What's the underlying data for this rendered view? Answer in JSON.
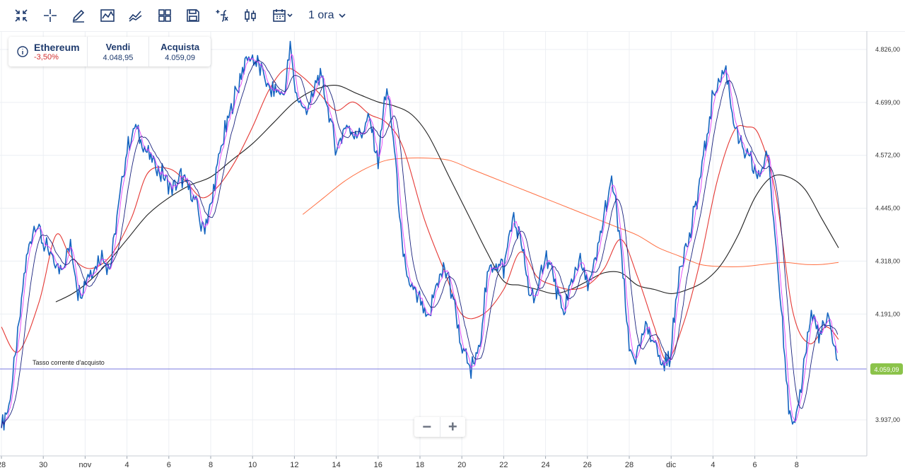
{
  "toolbar": {
    "icons": [
      "collapse-icon",
      "crosshair-icon",
      "pencil-icon",
      "line-style-icon",
      "indicator-icon",
      "layout-icon",
      "save-icon",
      "function-icon",
      "candlestick-icon",
      "calendar-icon"
    ],
    "timeframe_label": "1 ora"
  },
  "instrument": {
    "name": "Ethereum",
    "change": "-3,50%",
    "sell_label": "Vendi",
    "sell_value": "4.048,95",
    "buy_label": "Acquista",
    "buy_value": "4.059,09"
  },
  "current_rate": {
    "label": "Tasso corrente d'acquisto",
    "value": 4059.09,
    "value_text": "4.059,09",
    "color": "#7b7be0",
    "badge_color": "#8bc34a"
  },
  "zoom": {
    "minus": "−",
    "plus": "+"
  },
  "chart_data": {
    "type": "line",
    "x_tick_labels": [
      "28",
      "30",
      "nov",
      "4",
      "6",
      "8",
      "10",
      "12",
      "14",
      "16",
      "18",
      "20",
      "22",
      "24",
      "26",
      "28",
      "dic",
      "4",
      "6",
      "8"
    ],
    "y_tick_labels": [
      "4.826,00",
      "4.699,00",
      "4.572,00",
      "4.445,00",
      "4.318,00",
      "4.191,00",
      "4.059,09",
      "3.937,00"
    ],
    "y_ticks": [
      4826,
      4699,
      4572,
      4445,
      4318,
      4191,
      3937
    ],
    "ylim": [
      3870,
      4870
    ],
    "x_range": [
      0,
      41
    ],
    "grid": true,
    "colors": {
      "price": "#1565c0",
      "ma_fast": "#e040fb",
      "ma_mid": "#1a237e",
      "ma_red": "#e53935",
      "ma_black": "#212121",
      "ma_orange": "#ff7043"
    },
    "price_anchors": [
      [
        0,
        3930
      ],
      [
        0.3,
        3950
      ],
      [
        0.7,
        4100
      ],
      [
        1.2,
        4330
      ],
      [
        1.6,
        4420
      ],
      [
        2.2,
        4340
      ],
      [
        2.8,
        4300
      ],
      [
        3.3,
        4350
      ],
      [
        3.7,
        4240
      ],
      [
        4.2,
        4290
      ],
      [
        4.8,
        4330
      ],
      [
        5.2,
        4300
      ],
      [
        5.6,
        4450
      ],
      [
        6.0,
        4590
      ],
      [
        6.4,
        4640
      ],
      [
        6.8,
        4590
      ],
      [
        7.3,
        4550
      ],
      [
        7.8,
        4520
      ],
      [
        8.2,
        4490
      ],
      [
        8.6,
        4520
      ],
      [
        9.2,
        4470
      ],
      [
        9.6,
        4390
      ],
      [
        10.0,
        4440
      ],
      [
        10.4,
        4570
      ],
      [
        10.8,
        4650
      ],
      [
        11.2,
        4720
      ],
      [
        11.6,
        4790
      ],
      [
        12.0,
        4810
      ],
      [
        12.4,
        4780
      ],
      [
        12.8,
        4730
      ],
      [
        13.2,
        4720
      ],
      [
        13.5,
        4720
      ],
      [
        13.8,
        4830
      ],
      [
        14.0,
        4740
      ],
      [
        14.4,
        4680
      ],
      [
        14.8,
        4700
      ],
      [
        15.2,
        4770
      ],
      [
        15.6,
        4690
      ],
      [
        16.0,
        4580
      ],
      [
        16.4,
        4640
      ],
      [
        16.8,
        4630
      ],
      [
        17.2,
        4620
      ],
      [
        17.6,
        4660
      ],
      [
        18.0,
        4560
      ],
      [
        18.4,
        4740
      ],
      [
        18.8,
        4580
      ],
      [
        19.2,
        4320
      ],
      [
        19.6,
        4250
      ],
      [
        20.0,
        4220
      ],
      [
        20.4,
        4170
      ],
      [
        20.8,
        4270
      ],
      [
        21.2,
        4300
      ],
      [
        21.6,
        4230
      ],
      [
        22.0,
        4110
      ],
      [
        22.4,
        4050
      ],
      [
        22.8,
        4100
      ],
      [
        23.2,
        4280
      ],
      [
        23.6,
        4320
      ],
      [
        24.0,
        4300
      ],
      [
        24.4,
        4420
      ],
      [
        24.8,
        4370
      ],
      [
        25.2,
        4250
      ],
      [
        25.6,
        4230
      ],
      [
        26.0,
        4340
      ],
      [
        26.4,
        4280
      ],
      [
        26.8,
        4180
      ],
      [
        27.2,
        4260
      ],
      [
        27.6,
        4320
      ],
      [
        28.0,
        4260
      ],
      [
        28.4,
        4310
      ],
      [
        28.8,
        4430
      ],
      [
        29.2,
        4510
      ],
      [
        29.6,
        4350
      ],
      [
        30.0,
        4100
      ],
      [
        30.4,
        4090
      ],
      [
        30.8,
        4160
      ],
      [
        31.2,
        4130
      ],
      [
        31.6,
        4060
      ],
      [
        32.0,
        4100
      ],
      [
        32.4,
        4310
      ],
      [
        32.8,
        4360
      ],
      [
        33.2,
        4460
      ],
      [
        33.6,
        4580
      ],
      [
        34.0,
        4710
      ],
      [
        34.3,
        4750
      ],
      [
        34.6,
        4780
      ],
      [
        35.0,
        4660
      ],
      [
        35.4,
        4580
      ],
      [
        35.8,
        4560
      ],
      [
        36.2,
        4520
      ],
      [
        36.6,
        4580
      ],
      [
        36.9,
        4420
      ],
      [
        37.3,
        4200
      ],
      [
        37.6,
        3960
      ],
      [
        37.9,
        3910
      ],
      [
        38.3,
        4060
      ],
      [
        38.7,
        4190
      ],
      [
        39.1,
        4140
      ],
      [
        39.5,
        4170
      ],
      [
        39.9,
        4100
      ],
      [
        40.0,
        4060
      ]
    ],
    "ma_red": [
      [
        0,
        4160
      ],
      [
        0.8,
        4100
      ],
      [
        1.8,
        4220
      ],
      [
        2.6,
        4380
      ],
      [
        3.3,
        4330
      ],
      [
        4.2,
        4300
      ],
      [
        5.2,
        4330
      ],
      [
        6.2,
        4420
      ],
      [
        7.0,
        4530
      ],
      [
        8.0,
        4540
      ],
      [
        8.8,
        4510
      ],
      [
        9.6,
        4470
      ],
      [
        10.4,
        4500
      ],
      [
        11.2,
        4560
      ],
      [
        12.0,
        4640
      ],
      [
        12.8,
        4730
      ],
      [
        13.6,
        4780
      ],
      [
        14.4,
        4760
      ],
      [
        15.2,
        4720
      ],
      [
        16.0,
        4680
      ],
      [
        16.8,
        4700
      ],
      [
        17.6,
        4670
      ],
      [
        18.4,
        4650
      ],
      [
        19.2,
        4590
      ],
      [
        20.2,
        4420
      ],
      [
        21.2,
        4290
      ],
      [
        22.0,
        4190
      ],
      [
        23.0,
        4190
      ],
      [
        24.0,
        4250
      ],
      [
        24.8,
        4340
      ],
      [
        25.6,
        4280
      ],
      [
        26.4,
        4260
      ],
      [
        27.2,
        4250
      ],
      [
        28.0,
        4260
      ],
      [
        28.8,
        4300
      ],
      [
        29.6,
        4370
      ],
      [
        30.4,
        4280
      ],
      [
        31.2,
        4160
      ],
      [
        31.8,
        4080
      ],
      [
        32.6,
        4170
      ],
      [
        33.4,
        4320
      ],
      [
        34.2,
        4510
      ],
      [
        35.0,
        4630
      ],
      [
        35.6,
        4640
      ],
      [
        36.2,
        4620
      ],
      [
        37.0,
        4480
      ],
      [
        37.8,
        4200
      ],
      [
        38.6,
        4120
      ],
      [
        39.4,
        4160
      ],
      [
        40.0,
        4130
      ]
    ],
    "ma_black": [
      [
        2.6,
        4220
      ],
      [
        3.4,
        4240
      ],
      [
        4.2,
        4270
      ],
      [
        5.0,
        4310
      ],
      [
        6.0,
        4370
      ],
      [
        7.0,
        4430
      ],
      [
        8.0,
        4470
      ],
      [
        9.0,
        4500
      ],
      [
        10.0,
        4520
      ],
      [
        11.0,
        4560
      ],
      [
        12.0,
        4600
      ],
      [
        13.0,
        4650
      ],
      [
        14.0,
        4700
      ],
      [
        15.0,
        4730
      ],
      [
        16.0,
        4740
      ],
      [
        17.0,
        4720
      ],
      [
        18.0,
        4700
      ],
      [
        18.8,
        4690
      ],
      [
        19.6,
        4670
      ],
      [
        20.4,
        4620
      ],
      [
        21.4,
        4520
      ],
      [
        22.4,
        4420
      ],
      [
        23.2,
        4340
      ],
      [
        24.0,
        4270
      ],
      [
        24.8,
        4260
      ],
      [
        25.6,
        4250
      ],
      [
        26.4,
        4240
      ],
      [
        27.2,
        4250
      ],
      [
        28.0,
        4270
      ],
      [
        28.8,
        4290
      ],
      [
        29.6,
        4290
      ],
      [
        30.4,
        4260
      ],
      [
        31.2,
        4250
      ],
      [
        32.0,
        4240
      ],
      [
        32.8,
        4250
      ],
      [
        33.6,
        4270
      ],
      [
        34.4,
        4310
      ],
      [
        35.2,
        4380
      ],
      [
        36.0,
        4470
      ],
      [
        36.8,
        4520
      ],
      [
        37.6,
        4520
      ],
      [
        38.4,
        4490
      ],
      [
        39.2,
        4420
      ],
      [
        40.0,
        4350
      ]
    ],
    "ma_orange": [
      [
        14.4,
        4430
      ],
      [
        15.4,
        4470
      ],
      [
        16.4,
        4510
      ],
      [
        17.4,
        4540
      ],
      [
        18.4,
        4560
      ],
      [
        19.4,
        4565
      ],
      [
        20.4,
        4565
      ],
      [
        21.4,
        4560
      ],
      [
        22.4,
        4540
      ],
      [
        23.4,
        4520
      ],
      [
        24.4,
        4500
      ],
      [
        25.4,
        4480
      ],
      [
        26.4,
        4460
      ],
      [
        27.4,
        4440
      ],
      [
        28.4,
        4420
      ],
      [
        29.4,
        4400
      ],
      [
        30.4,
        4380
      ],
      [
        31.4,
        4350
      ],
      [
        32.4,
        4330
      ],
      [
        33.4,
        4310
      ],
      [
        34.4,
        4305
      ],
      [
        35.4,
        4305
      ],
      [
        36.4,
        4310
      ],
      [
        37.4,
        4315
      ],
      [
        38.4,
        4310
      ],
      [
        39.2,
        4310
      ],
      [
        40.0,
        4315
      ]
    ]
  }
}
